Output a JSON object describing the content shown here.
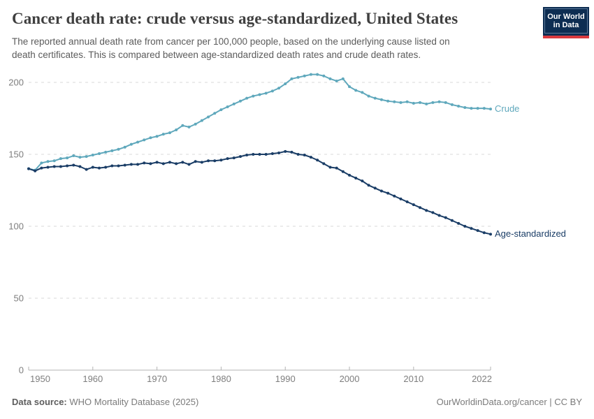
{
  "header": {
    "title": "Cancer death rate: crude versus age-standardized, United States",
    "subtitle_line1": "The reported annual death rate from cancer per 100,000 people, based on the underlying cause listed on",
    "subtitle_line2": "death certificates. This is compared between age-standardized death rates and crude death rates.",
    "logo": {
      "line1": "Our World",
      "line2": "in Data",
      "bg_color": "#0d2d52",
      "bar_color": "#d93a3f"
    }
  },
  "chart_data": {
    "type": "line",
    "title": "Cancer death rate: crude versus age-standardized, United States",
    "xlabel": "",
    "ylabel": "",
    "ylim": [
      0,
      200
    ],
    "yticks": [
      0,
      50,
      100,
      150,
      200
    ],
    "xticks": [
      1950,
      1960,
      1970,
      1980,
      1990,
      2000,
      2010,
      2022
    ],
    "grid": "horizontal-dashed",
    "legend_position": "line-end-labels",
    "x": [
      1950,
      1951,
      1952,
      1953,
      1954,
      1955,
      1956,
      1957,
      1958,
      1959,
      1960,
      1961,
      1962,
      1963,
      1964,
      1965,
      1966,
      1967,
      1968,
      1969,
      1970,
      1971,
      1972,
      1973,
      1974,
      1975,
      1976,
      1977,
      1978,
      1979,
      1980,
      1981,
      1982,
      1983,
      1984,
      1985,
      1986,
      1987,
      1988,
      1989,
      1990,
      1991,
      1992,
      1993,
      1994,
      1995,
      1996,
      1997,
      1998,
      1999,
      2000,
      2001,
      2002,
      2003,
      2004,
      2005,
      2006,
      2007,
      2008,
      2009,
      2010,
      2011,
      2012,
      2013,
      2014,
      2015,
      2016,
      2017,
      2018,
      2019,
      2020,
      2021,
      2022
    ],
    "series": [
      {
        "name": "Crude",
        "color": "#5fa8bc",
        "values": [
          140,
          139,
          144,
          145,
          145.5,
          147,
          147.5,
          149,
          148,
          148.5,
          149.5,
          150.5,
          151.5,
          152.5,
          153.5,
          155,
          157,
          158.5,
          160,
          161.5,
          162.5,
          164,
          165,
          167,
          170,
          169,
          171,
          173.5,
          176,
          178.5,
          181,
          183,
          185,
          187,
          189,
          190.5,
          191.5,
          192.5,
          194,
          196,
          199,
          202.5,
          203.5,
          204.5,
          205.5,
          205.5,
          204.5,
          202.5,
          201,
          202.5,
          197,
          194.5,
          193,
          190.5,
          189,
          188,
          187,
          186.5,
          186,
          186.5,
          185.5,
          186,
          185,
          186,
          186.5,
          186,
          184.5,
          183.5,
          182.5,
          182,
          182,
          182,
          181.5
        ]
      },
      {
        "name": "Age-standardized",
        "color": "#1a3d66",
        "values": [
          140,
          138.5,
          140.5,
          141,
          141.5,
          141.5,
          142,
          142.5,
          141.5,
          139.5,
          141,
          140.5,
          141,
          142,
          142,
          142.5,
          143,
          143,
          144,
          143.5,
          144.5,
          143.5,
          144.5,
          143.5,
          144.5,
          143,
          145,
          144.5,
          145.5,
          145.5,
          146,
          147,
          147.5,
          148.5,
          149.5,
          150,
          150,
          150,
          150.5,
          151,
          152,
          151.5,
          150,
          149.5,
          148,
          146,
          143.5,
          141,
          140.5,
          138,
          135.5,
          133.5,
          131.5,
          128.5,
          126.5,
          124.5,
          123,
          121,
          119,
          117,
          115,
          113,
          111,
          109.5,
          107.5,
          106,
          104,
          102,
          100,
          98.5,
          97,
          95.5,
          94.5
        ]
      }
    ]
  },
  "axis_style": {
    "grid_color": "#dadada",
    "axis_color": "#b3b3b3",
    "tick_label_color": "#7e7e7e"
  },
  "footer": {
    "source_label": "Data source:",
    "source_value": "WHO Mortality Database (2025)",
    "credit": "OurWorldinData.org/cancer | CC BY"
  }
}
